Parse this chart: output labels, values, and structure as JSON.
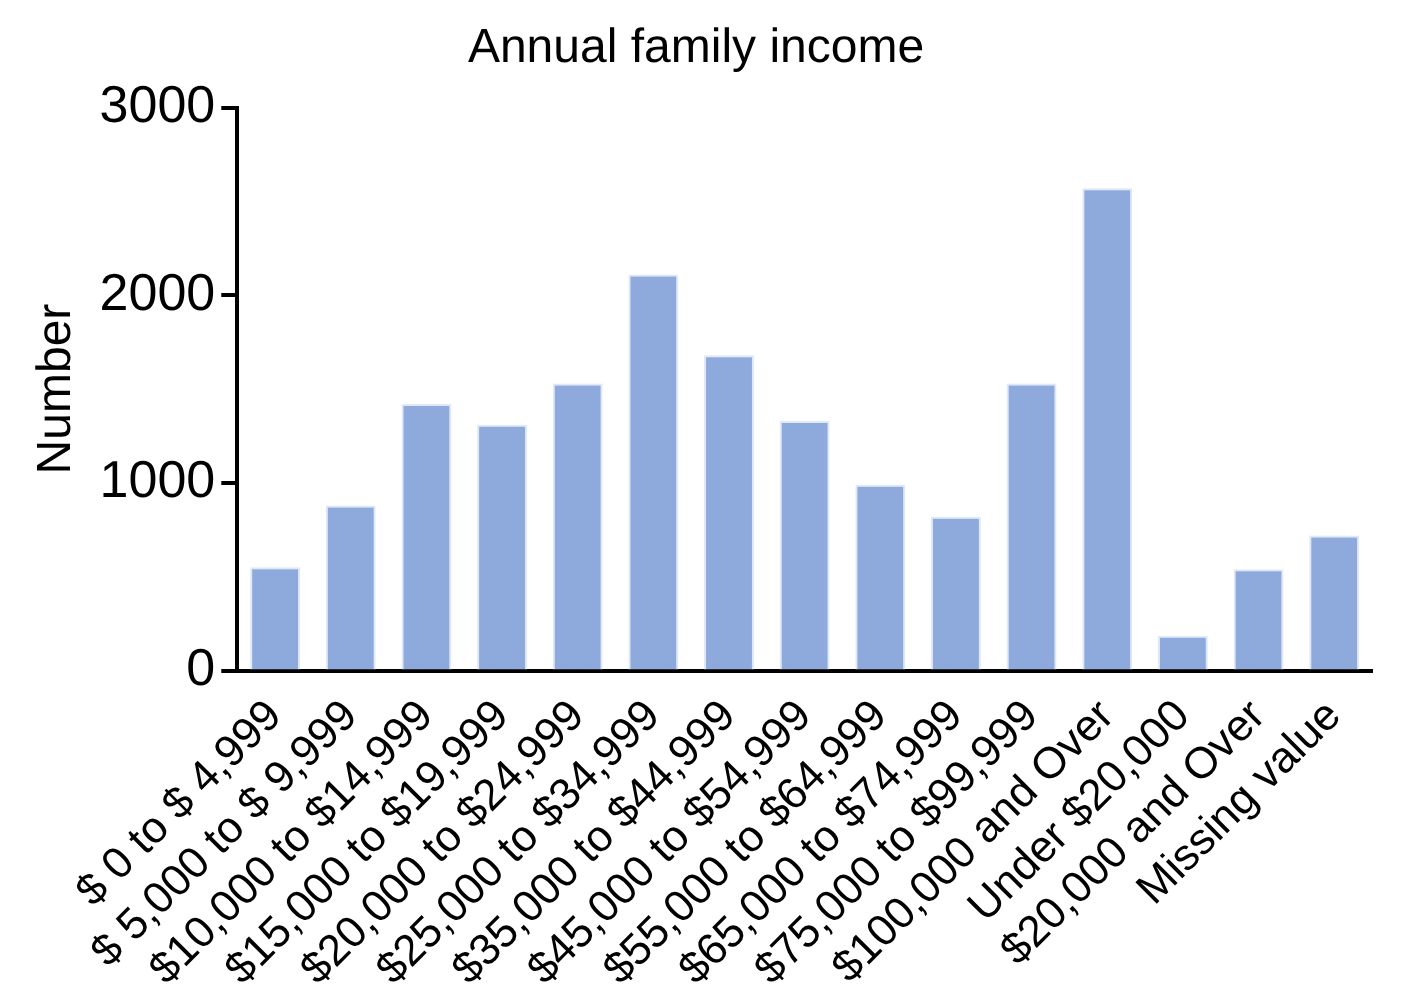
{
  "chart_data": {
    "type": "bar",
    "title": "Annual family income",
    "ylabel": "Number",
    "categories": [
      "$ 0 to $ 4,999",
      "$ 5,000 to $ 9,999",
      "$10,000 to $14,999",
      "$15,000 to $19,999",
      "$20,000 to $24,999",
      "$25,000 to $34,999",
      "$35,000 to $44,999",
      "$45,000 to $54,999",
      "$55,000 to $64,999",
      "$65,000 to $74,999",
      "$75,000 to $99,999",
      "$100,000 and Over",
      "Under $20,000",
      "$20,000 and Over",
      "Missing value"
    ],
    "values": [
      550,
      880,
      1420,
      1310,
      1530,
      2110,
      1680,
      1330,
      990,
      820,
      1530,
      2570,
      185,
      540,
      720
    ],
    "color": "#8eaadc",
    "ylim": [
      0,
      3000
    ],
    "yticks": [
      0,
      1000,
      2000,
      3000
    ],
    "grid": false,
    "legend": false
  }
}
